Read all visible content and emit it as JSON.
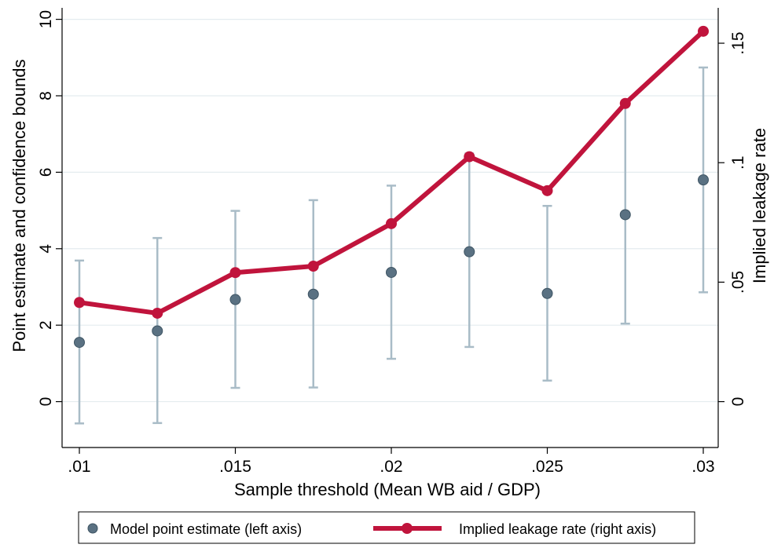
{
  "chart_data": {
    "type": "line",
    "xlabel": "Sample threshold (Mean WB aid / GDP)",
    "ylabel_left": "Point estimate and confidence bounds",
    "ylabel_right": "Implied leakage rate",
    "x_ticks": [
      0.01,
      0.015,
      0.02,
      0.025,
      0.03
    ],
    "x_tick_labels": [
      ".01",
      ".015",
      ".02",
      ".025",
      ".03"
    ],
    "y_left_ticks": [
      0,
      2,
      4,
      6,
      8,
      10
    ],
    "y_left_tick_labels": [
      "0",
      "2",
      "4",
      "6",
      "8",
      "10"
    ],
    "y_right_ticks": [
      0,
      0.05,
      0.1,
      0.15
    ],
    "y_right_tick_labels": [
      "0",
      ".05",
      ".1",
      ".15"
    ],
    "xlim": [
      0.01,
      0.03
    ],
    "ylim_left": [
      -1.2,
      10.3
    ],
    "ylim_right": [
      -0.0192,
      0.1648
    ],
    "grid": true,
    "legend_position": "bottom",
    "x": [
      0.01,
      0.0125,
      0.015,
      0.0175,
      0.02,
      0.0225,
      0.025,
      0.0275,
      0.03
    ],
    "series": [
      {
        "name": "Model point estimate (left axis)",
        "axis": "left",
        "style": "point-with-ci",
        "color": "#5a7182",
        "ci_color": "#a9bcc7",
        "values": [
          1.55,
          1.85,
          2.67,
          2.81,
          3.38,
          3.92,
          2.83,
          4.89,
          5.8
        ],
        "lower": [
          -0.57,
          -0.56,
          0.36,
          0.37,
          1.12,
          1.43,
          0.55,
          2.04,
          2.86
        ],
        "upper": [
          3.69,
          4.28,
          4.99,
          5.27,
          5.65,
          6.49,
          5.12,
          7.75,
          8.74
        ]
      },
      {
        "name": "Implied leakage rate (right axis)",
        "axis": "right",
        "style": "line-marker",
        "color": "#c0143c",
        "values": [
          0.0415,
          0.037,
          0.054,
          0.0567,
          0.0745,
          0.1025,
          0.0883,
          0.1248,
          0.155
        ]
      }
    ]
  }
}
